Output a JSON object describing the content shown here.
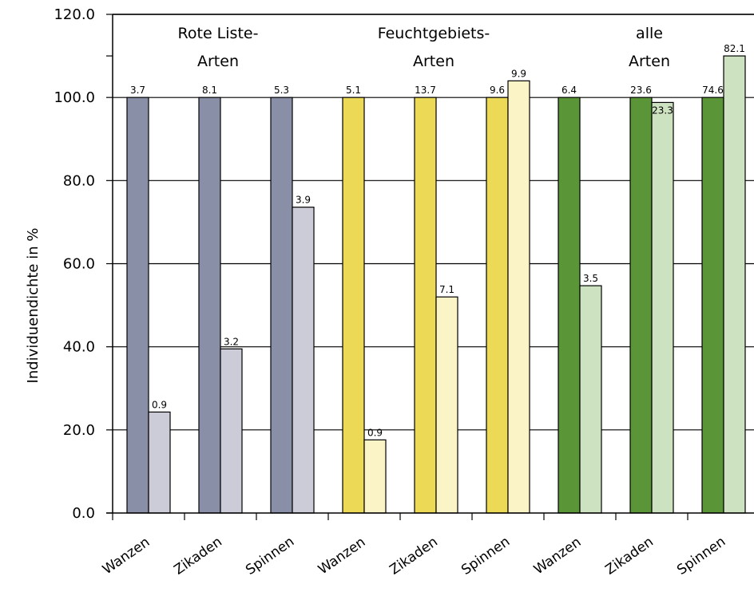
{
  "chart_data": {
    "type": "bar",
    "title": "",
    "xlabel": "",
    "ylabel": "Individuendichte in %",
    "ylim": [
      0,
      120
    ],
    "yticks": [
      "0.0",
      "20.0",
      "40.0",
      "60.0",
      "80.0",
      "100.0",
      "120.0"
    ],
    "grid": true,
    "categories": [
      "Wanzen",
      "Zikaden",
      "Spinnen",
      "Wanzen",
      "Zikaden",
      "Spinnen",
      "Wanzen",
      "Zikaden",
      "Spinnen"
    ],
    "groups": [
      {
        "line1": "Rote Liste-",
        "line2": "Arten"
      },
      {
        "line1": "Feuchtgebiets-",
        "line2": "Arten"
      },
      {
        "line1": "alle",
        "line2": "Arten"
      }
    ],
    "series": [
      {
        "values": [
          100,
          100,
          100,
          100,
          100,
          100,
          100,
          100,
          100
        ],
        "labels": [
          "3.7",
          "8.1",
          "5.3",
          "5.1",
          "13.7",
          "9.6",
          "6.4",
          "23.6",
          "74.6"
        ]
      },
      {
        "values": [
          24.3,
          39.5,
          73.6,
          17.6,
          52.0,
          104.0,
          54.7,
          98.8,
          110.0
        ],
        "labels": [
          "0.9",
          "3.2",
          "3.9",
          "0.9",
          "7.1",
          "9.9",
          "3.5",
          "23.3",
          "82.1"
        ]
      }
    ],
    "colors": {
      "dark": [
        "#8a8fa8",
        "#8a8fa8",
        "#8a8fa8",
        "#ecd955",
        "#ecd955",
        "#ecd955",
        "#5a9638",
        "#5a9638",
        "#5a9638"
      ],
      "light": [
        "#ccccd8",
        "#ccccd8",
        "#ccccd8",
        "#faf4c6",
        "#faf4c6",
        "#faf4c6",
        "#cde2c0",
        "#cde2c0",
        "#cde2c0"
      ]
    }
  }
}
